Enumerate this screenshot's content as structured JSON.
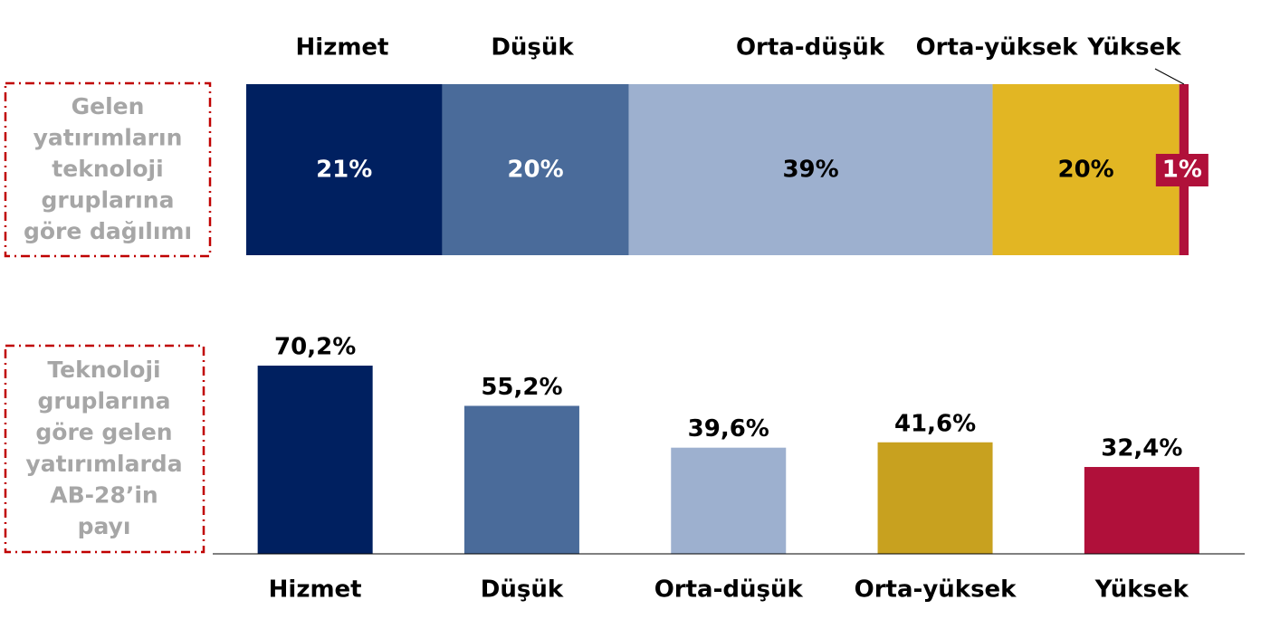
{
  "chart_data": [
    {
      "type": "stacked-bar",
      "title": [
        "Gelen",
        "yatırımların",
        "teknoloji",
        "gruplarına",
        "göre dağılımı"
      ],
      "series": [
        {
          "name": "Hizmet",
          "color": "#002060",
          "values": [
            21
          ],
          "value_labels": [
            "21%"
          ]
        },
        {
          "name": "Düşük",
          "color": "#4a6b9a",
          "values": [
            20
          ],
          "value_labels": [
            "20%"
          ]
        },
        {
          "name": "Orta-düşük",
          "color": "#9db0cf",
          "values": [
            39
          ],
          "value_labels": [
            "39%"
          ]
        },
        {
          "name": "Orta-yüksek",
          "color": "#e2b623",
          "values": [
            20
          ],
          "value_labels": [
            "20%"
          ]
        },
        {
          "name": "Yüksek",
          "color": "#b0103a",
          "values": [
            1
          ],
          "value_labels": [
            "1%"
          ]
        }
      ]
    },
    {
      "type": "bar",
      "title": [
        "Teknoloji",
        "gruplarına",
        "göre gelen",
        "yatırımlarda",
        "AB-28’in",
        "payı"
      ],
      "categories": [
        "Hizmet",
        "Düşük",
        "Orta-düşük",
        "Orta-yüksek",
        "Yüksek"
      ],
      "values": [
        70.2,
        55.2,
        39.6,
        41.6,
        32.4
      ],
      "value_labels": [
        "70,2%",
        "55,2%",
        "39,6%",
        "41,6%",
        "32,4%"
      ],
      "colors": [
        "#002060",
        "#4a6b9a",
        "#9db0cf",
        "#c8a11f",
        "#b0103a"
      ],
      "ylim": [
        0,
        80
      ]
    }
  ]
}
